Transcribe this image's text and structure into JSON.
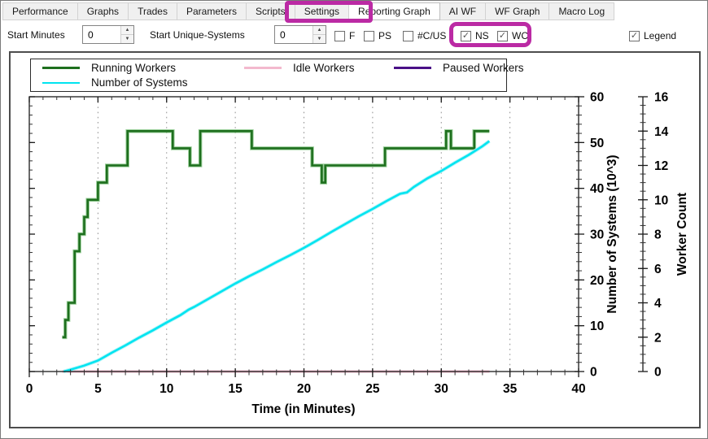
{
  "tabs": {
    "items": [
      {
        "label": "Performance",
        "selected": false
      },
      {
        "label": "Graphs",
        "selected": false
      },
      {
        "label": "Trades",
        "selected": false
      },
      {
        "label": "Parameters",
        "selected": false
      },
      {
        "label": "Scripts",
        "selected": false
      },
      {
        "label": "Settings",
        "selected": false
      },
      {
        "label": "Reporting Graph",
        "selected": true
      },
      {
        "label": "AI WF",
        "selected": false
      },
      {
        "label": "WF Graph",
        "selected": false
      },
      {
        "label": "Macro Log",
        "selected": false
      }
    ]
  },
  "toolbar": {
    "start_minutes_label": "Start Minutes",
    "start_minutes_value": "0",
    "start_unique_label": "Start Unique-Systems",
    "start_unique_value": "0",
    "checkboxes": [
      {
        "label": "F",
        "checked": false
      },
      {
        "label": "PS",
        "checked": false
      },
      {
        "label": "#C/US",
        "checked": false
      },
      {
        "label": "NS",
        "checked": true
      },
      {
        "label": "WC",
        "checked": true
      }
    ],
    "legend_checkbox": {
      "label": "Legend",
      "checked": true
    }
  },
  "annotations": {
    "color": "#bb2aa4",
    "boxes": [
      "reporting-graph-tab",
      "ns-wc-checkboxes"
    ]
  },
  "chart_data": {
    "type": "line",
    "title": "",
    "xlabel": "Time (in Minutes)",
    "xlim": [
      0,
      40
    ],
    "x_major_ticks": [
      0,
      5,
      10,
      15,
      20,
      25,
      30,
      35,
      40
    ],
    "x_minor_step": 1,
    "x_gridlines": [
      5,
      10,
      15,
      20,
      25,
      30,
      35
    ],
    "grid": "vertical-dotted",
    "legend_position": "top-left",
    "axes": {
      "systems": {
        "label": "Number of Systems (10^3)",
        "lim": [
          0,
          60
        ],
        "major_ticks": [
          0,
          10,
          20,
          30,
          40,
          50,
          60
        ],
        "minor_step": 2
      },
      "worker": {
        "label": "Worker Count",
        "lim": [
          0,
          16
        ],
        "major_ticks": [
          0,
          2,
          4,
          6,
          8,
          10,
          12,
          14,
          16
        ],
        "minor_step": 0.5
      }
    },
    "series": [
      {
        "name": "Running Workers",
        "axis": "worker",
        "style": "step",
        "color": "#1e6f1e",
        "halo": "#8cc98c",
        "points": [
          [
            2.4,
            2
          ],
          [
            2.62,
            3
          ],
          [
            2.85,
            4
          ],
          [
            3.3,
            7
          ],
          [
            3.65,
            8
          ],
          [
            4.0,
            9
          ],
          [
            4.25,
            10
          ],
          [
            5.0,
            11
          ],
          [
            5.65,
            12
          ],
          [
            7.15,
            14
          ],
          [
            10.45,
            13
          ],
          [
            11.7,
            12
          ],
          [
            12.45,
            14
          ],
          [
            16.2,
            13
          ],
          [
            20.6,
            12
          ],
          [
            21.3,
            11
          ],
          [
            21.55,
            12
          ],
          [
            25.9,
            13
          ],
          [
            30.35,
            14
          ],
          [
            30.7,
            13
          ],
          [
            32.4,
            14
          ],
          [
            33.5,
            14
          ]
        ]
      },
      {
        "name": "Idle Workers",
        "axis": "worker",
        "style": "line",
        "color": "#f3b9ce",
        "points": [
          [
            2.4,
            0
          ],
          [
            33.5,
            0
          ]
        ]
      },
      {
        "name": "Paused Workers",
        "axis": "worker",
        "style": "line",
        "color": "#4a1087",
        "points": [
          [
            2.4,
            0
          ],
          [
            33.5,
            0
          ]
        ]
      },
      {
        "name": "Number of Systems",
        "axis": "systems",
        "style": "line",
        "color": "#00e4f0",
        "halo": "#aef3f7",
        "points": [
          [
            2.5,
            0
          ],
          [
            3,
            0.4
          ],
          [
            4,
            1.3
          ],
          [
            5,
            2.4
          ],
          [
            6,
            4.1
          ],
          [
            7,
            5.7
          ],
          [
            8,
            7.4
          ],
          [
            9,
            9.0
          ],
          [
            10,
            10.7
          ],
          [
            11,
            12.3
          ],
          [
            11.6,
            13.5
          ],
          [
            12,
            14.1
          ],
          [
            13,
            15.8
          ],
          [
            14,
            17.5
          ],
          [
            15,
            19.2
          ],
          [
            16,
            20.8
          ],
          [
            17,
            22.3
          ],
          [
            18,
            23.9
          ],
          [
            19,
            25.4
          ],
          [
            20,
            27.0
          ],
          [
            21,
            28.7
          ],
          [
            22,
            30.5
          ],
          [
            23,
            32.2
          ],
          [
            24,
            33.9
          ],
          [
            25,
            35.5
          ],
          [
            26,
            37.2
          ],
          [
            27,
            38.8
          ],
          [
            27.5,
            39.1
          ],
          [
            28,
            40.3
          ],
          [
            29,
            42.2
          ],
          [
            30,
            43.8
          ],
          [
            31,
            45.6
          ],
          [
            32,
            47.3
          ],
          [
            33,
            49.2
          ],
          [
            33.5,
            50.3
          ]
        ]
      }
    ]
  }
}
